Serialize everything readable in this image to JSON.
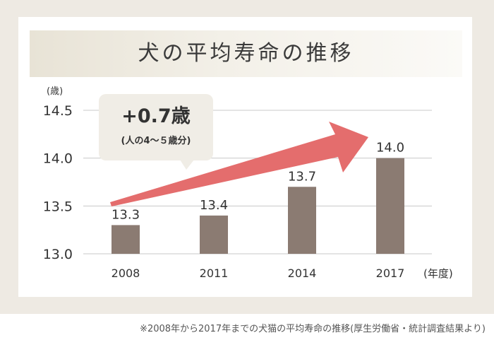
{
  "title": "犬の平均寿命の推移",
  "footnote": "※2008年から2017年までの犬猫の平均寿命の推移(厚生労働省・統計調査結果より)",
  "colors": {
    "bar": "#8b7b72",
    "arrow": "#e46d6d",
    "callout_bg": "#f0ede6",
    "grid": "#c8c8c8",
    "text": "#333333"
  },
  "chart_data": {
    "type": "bar",
    "categories": [
      "2008",
      "2011",
      "2014",
      "2017"
    ],
    "values": [
      13.3,
      13.4,
      13.7,
      14.0
    ],
    "data_labels": [
      "13.3",
      "13.4",
      "13.7",
      "14.0"
    ],
    "ylabel": "(歳)",
    "xlabel": "(年度)",
    "ylim": [
      13.0,
      14.5
    ],
    "yticks": [
      13.0,
      13.5,
      14.0,
      14.5
    ],
    "ytick_labels": [
      "13.0",
      "13.5",
      "14.0",
      "14.5"
    ],
    "grid": true,
    "annotation": {
      "main": "+0.7歳",
      "sub": "(人の4〜５歳分)"
    },
    "trend_arrow": {
      "from": "2008",
      "to": "2017"
    }
  }
}
